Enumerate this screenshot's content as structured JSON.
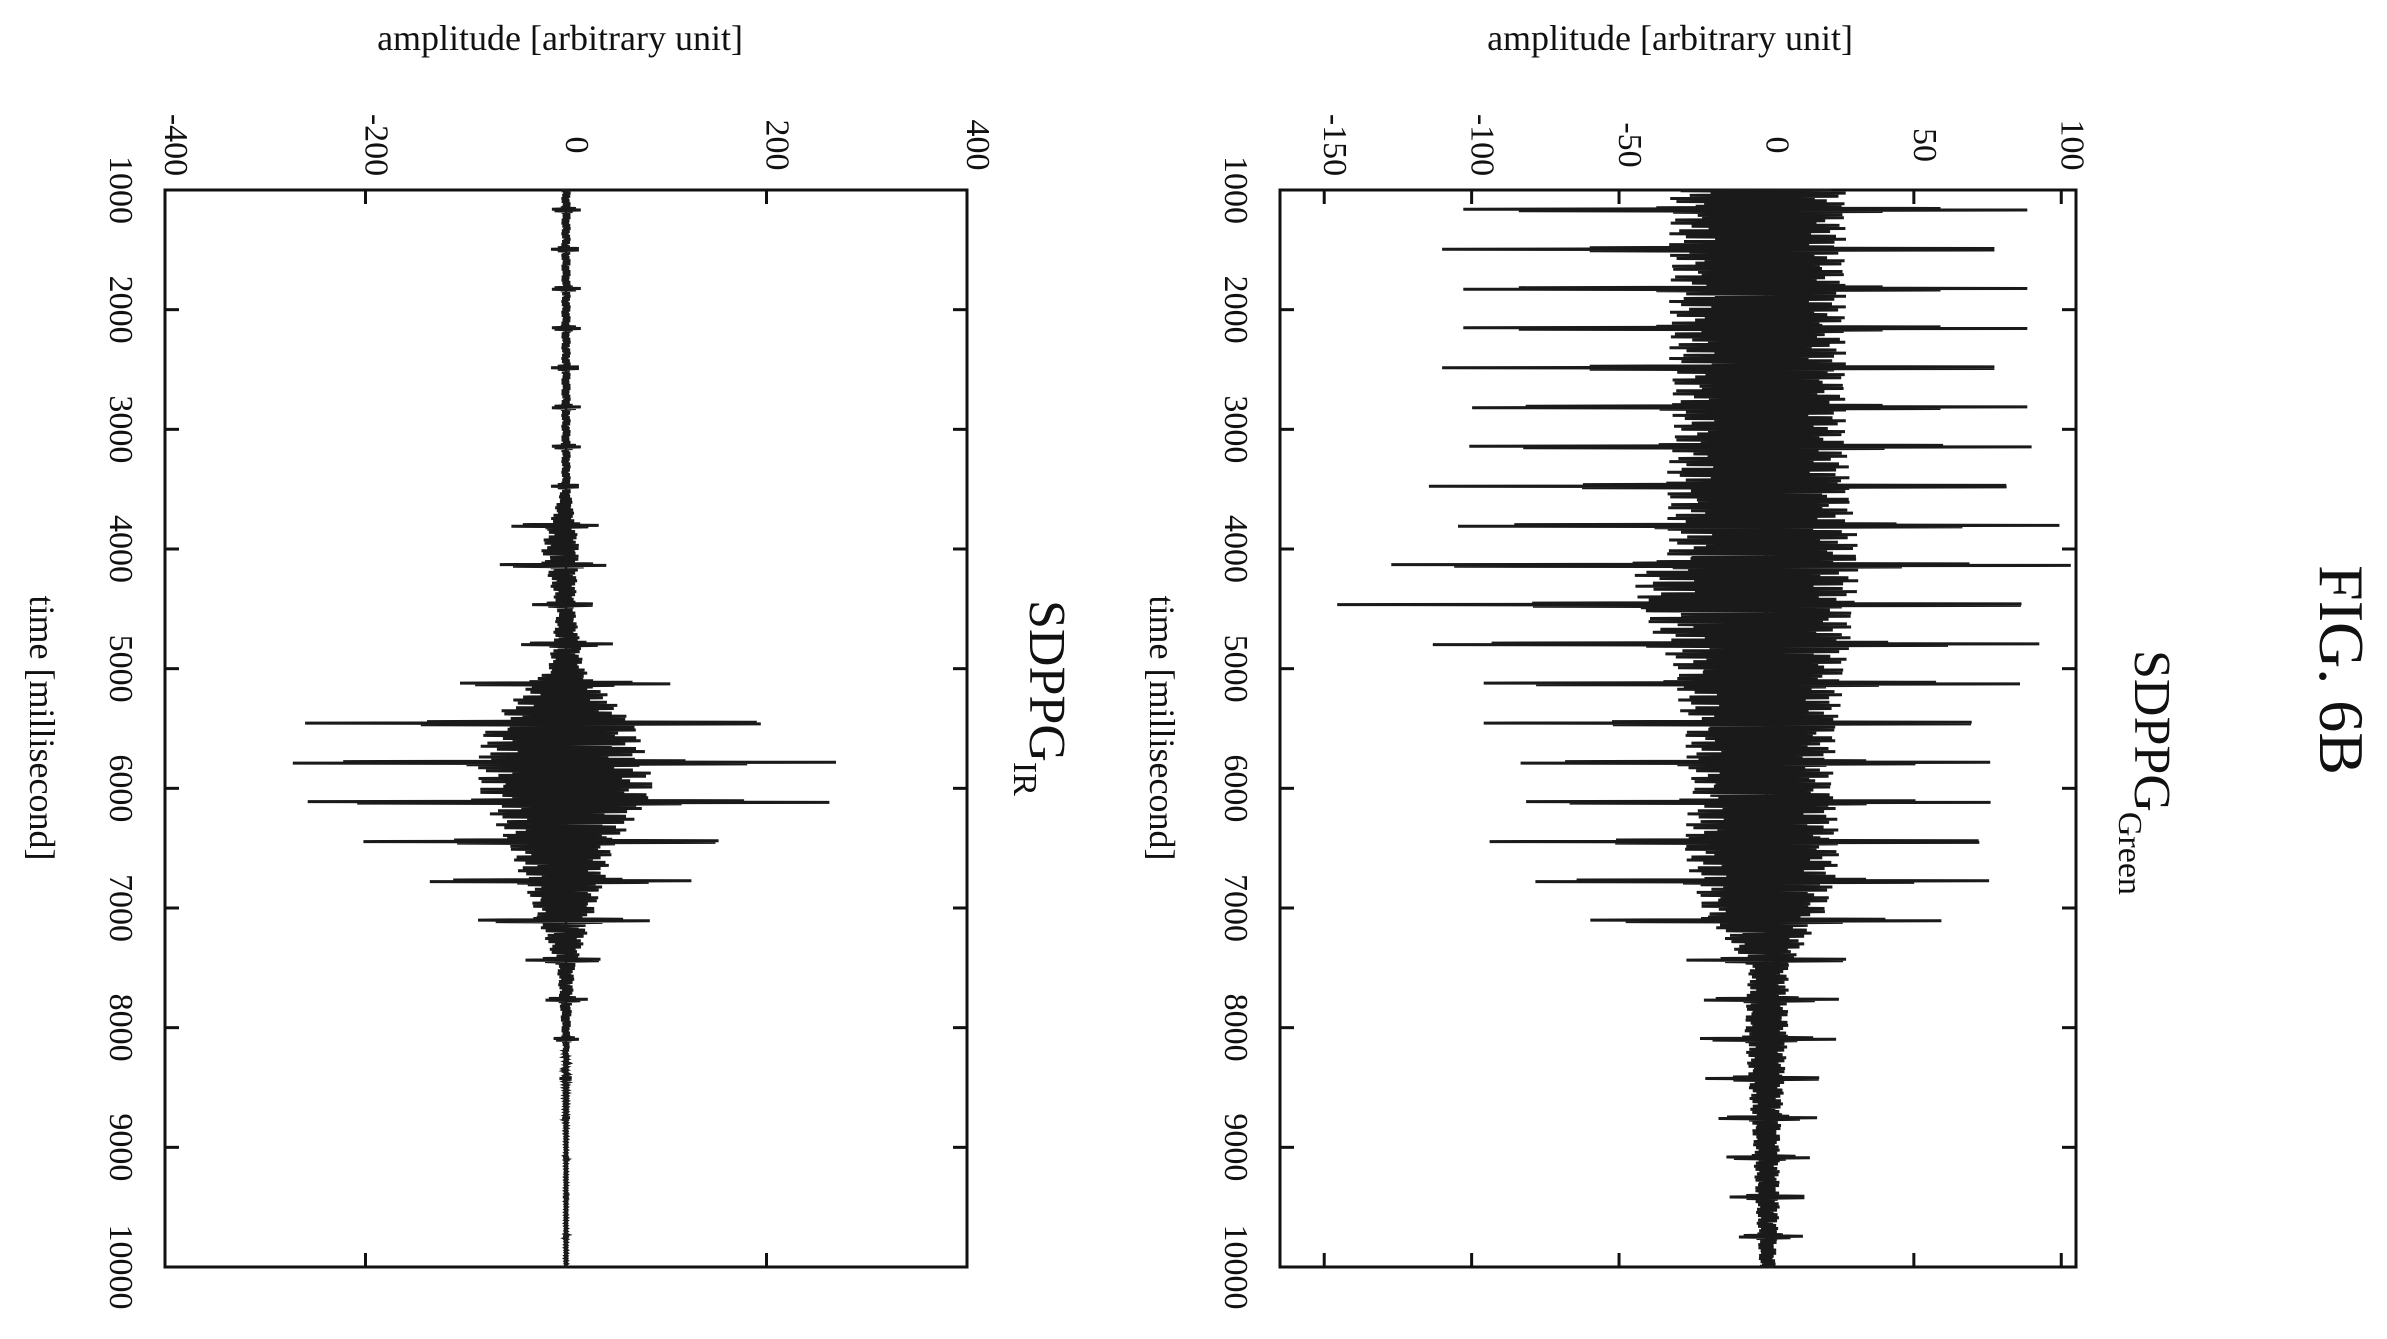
{
  "figure": {
    "label": "FIG. 6B"
  },
  "charts": [
    {
      "id": "green",
      "title_main": "SDPPG",
      "title_sub": "Green",
      "xlabel": "time [millisecond]",
      "ylabel": "amplitude [arbitrary unit]",
      "x_ticks": [
        "1000",
        "2000",
        "3000",
        "4000",
        "5000",
        "6000",
        "7000",
        "8000",
        "9000",
        "10000"
      ],
      "y_ticks": [
        "-150",
        "-100",
        "-50",
        "0",
        "50",
        "100"
      ]
    },
    {
      "id": "ir",
      "title_main": "SDPPG",
      "title_sub": "IR",
      "xlabel": "time [millisecond]",
      "ylabel": "amplitude [arbitrary unit]",
      "x_ticks": [
        "1000",
        "2000",
        "3000",
        "4000",
        "5000",
        "6000",
        "7000",
        "8000",
        "9000",
        "10000"
      ],
      "y_ticks": [
        "-400",
        "-200",
        "0",
        "200",
        "400"
      ]
    }
  ],
  "chart_data": [
    {
      "type": "line",
      "title": "SDPPG Green",
      "xlabel": "time [millisecond]",
      "ylabel": "amplitude [arbitrary unit]",
      "xlim": [
        1000,
        10000
      ],
      "ylim": [
        -165,
        105
      ],
      "series": [
        {
          "x": [
            1000,
            1500,
            2000,
            2500,
            3000,
            3500,
            4000,
            4200,
            4500,
            5000,
            5500,
            6000,
            6500,
            7000,
            7500,
            8000,
            8500,
            9000,
            9500,
            10000
          ],
          "max": [
            90,
            90,
            90,
            90,
            90,
            95,
            105,
            105,
            100,
            90,
            80,
            75,
            85,
            70,
            25,
            25,
            20,
            15,
            15,
            10
          ],
          "min": [
            -110,
            -110,
            -110,
            -110,
            -105,
            -115,
            -110,
            -150,
            -145,
            -105,
            -95,
            -85,
            -95,
            -75,
            -20,
            -25,
            -20,
            -15,
            -12,
            -8
          ]
        }
      ]
    },
    {
      "type": "line",
      "title": "SDPPG IR",
      "xlabel": "time [millisecond]",
      "ylabel": "amplitude [arbitrary unit]",
      "xlim": [
        1000,
        10000
      ],
      "ylim": [
        -400,
        400
      ],
      "series": [
        {
          "x": [
            1000,
            1500,
            2000,
            2500,
            3000,
            3500,
            4000,
            4500,
            5000,
            5500,
            6000,
            6500,
            7000,
            7500,
            8000,
            8500,
            9000,
            9500,
            10000
          ],
          "max": [
            15,
            15,
            15,
            15,
            15,
            15,
            45,
            30,
            60,
            240,
            300,
            160,
            100,
            30,
            15,
            5,
            3,
            3,
            3
          ],
          "min": [
            -15,
            -15,
            -15,
            -15,
            -15,
            -15,
            -85,
            -30,
            -60,
            -280,
            -300,
            -190,
            -110,
            -30,
            -15,
            -5,
            -3,
            -3,
            -3
          ]
        }
      ]
    }
  ]
}
